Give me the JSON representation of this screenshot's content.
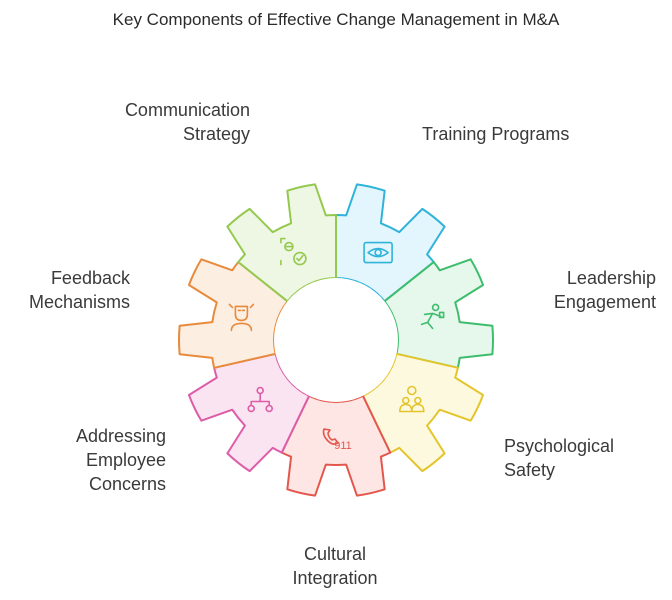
{
  "title": "Key Components of Effective Change Management in M&A",
  "segments": [
    {
      "label": "Communication\nStrategy",
      "icon": "eye-icon",
      "fill": "#e3f6fd",
      "stroke": "#2fb3d9"
    },
    {
      "label": "Training Programs",
      "icon": "person-presenting-icon",
      "fill": "#e6f7ec",
      "stroke": "#3ebd6c"
    },
    {
      "label": "Leadership\nEngagement",
      "icon": "people-lightbulb-icon",
      "fill": "#fdf9df",
      "stroke": "#e3c52b"
    },
    {
      "label": "Psychological\nSafety",
      "icon": "phone-911-icon",
      "fill": "#fde6e4",
      "stroke": "#e4574c",
      "icon_text": "911"
    },
    {
      "label": "Cultural\nIntegration",
      "icon": "network-icon",
      "fill": "#fbe4f1",
      "stroke": "#dc5ca8"
    },
    {
      "label": "Addressing\nEmployee\nConcerns",
      "icon": "worried-person-icon",
      "fill": "#fdeee2",
      "stroke": "#e88a3c"
    },
    {
      "label": "Feedback\nMechanisms",
      "icon": "feedback-check-icon",
      "fill": "#eef7e3",
      "stroke": "#94c94f"
    }
  ]
}
